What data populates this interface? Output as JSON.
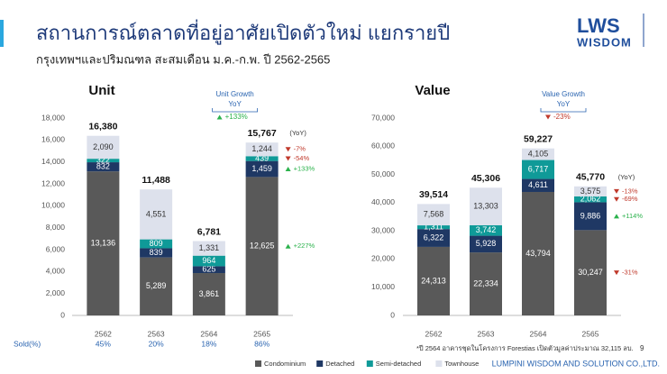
{
  "header": {
    "title": "สถานการณ์ตลาดที่อยู่อาศัยเปิดตัวใหม่ แยกรายปี",
    "subtitle": "กรุงเทพฯและปริมณฑล สะสมเดือน ม.ค.-ก.พ. ปี 2562-2565",
    "logo_top": "LWS",
    "logo_bottom": "WISDOM"
  },
  "chart_data": [
    {
      "type": "stacked_bar",
      "title": "Unit",
      "categories": [
        "2562",
        "2563",
        "2564",
        "2565"
      ],
      "series": [
        {
          "name": "Condominium",
          "color": "#595959",
          "values": [
            13136,
            5289,
            3861,
            12625
          ],
          "value_labels": [
            "13,136",
            "5,289",
            "3,861",
            "12,625"
          ]
        },
        {
          "name": "Detached",
          "color": "#1f3864",
          "values": [
            832,
            839,
            625,
            1459
          ],
          "value_labels": [
            "832",
            "839",
            "625",
            "1,459"
          ]
        },
        {
          "name": "Semi-detached",
          "color": "#0f9a98",
          "values": [
            322,
            809,
            964,
            439
          ],
          "value_labels": [
            "322",
            "809",
            "964",
            "439"
          ]
        },
        {
          "name": "Townhouse",
          "color": "#dde1ec",
          "values": [
            2090,
            4551,
            1331,
            1244
          ],
          "value_labels": [
            "2,090",
            "4,551",
            "1,331",
            "1,244"
          ]
        }
      ],
      "totals": [
        16380,
        11488,
        6781,
        15767
      ],
      "total_labels": [
        "16,380",
        "11,488",
        "6,781",
        "15,767"
      ],
      "ylim": [
        0,
        18000
      ],
      "yticks": [
        0,
        {
          "value": 2000,
          "label": "2,000"
        },
        {
          "value": 4000,
          "label": "4,000"
        },
        {
          "value": 6000,
          "label": "6,000"
        },
        {
          "value": 8000,
          "label": "8,000"
        },
        {
          "value": 10000,
          "label": "10,000"
        },
        {
          "value": 12000,
          "label": "12,000"
        },
        {
          "value": 14000,
          "label": "14,000"
        },
        {
          "value": 16000,
          "label": "16,000"
        },
        {
          "value": 18000,
          "label": "18,000"
        }
      ],
      "growth": {
        "title": "Unit Growth",
        "subtitle": "YoY",
        "total": "+133%",
        "label": "(YoY)",
        "segments": [
          "+227%",
          "+133%",
          "-54%",
          "-7%"
        ]
      },
      "sold": {
        "label": "Sold(%)",
        "values": [
          "45%",
          "20%",
          "18%",
          "86%"
        ]
      }
    },
    {
      "type": "stacked_bar",
      "title": "Value",
      "categories": [
        "2562",
        "2563",
        "2564",
        "2565"
      ],
      "series": [
        {
          "color": "#595959",
          "values": [
            24313,
            22334,
            43794,
            30247
          ],
          "value_labels": [
            "24,313",
            "22,334",
            "43,794",
            "30,247"
          ]
        },
        {
          "color": "#1f3864",
          "values": [
            6322,
            5928,
            4611,
            9886
          ],
          "value_labels": [
            "6,322",
            "5,928",
            "4,611",
            "9,886"
          ]
        },
        {
          "color": "#0f9a98",
          "values": [
            1311,
            3742,
            6717,
            2062
          ],
          "value_labels": [
            "1,311",
            "3,742",
            "6,717",
            "2,062"
          ]
        },
        {
          "color": "#dde1ec",
          "values": [
            7568,
            13303,
            4105,
            3575
          ],
          "value_labels": [
            "7,568",
            "13,303",
            "4,105",
            "3,575"
          ]
        }
      ],
      "totals": [
        39514,
        45306,
        59227,
        45770
      ],
      "total_labels": [
        "39,514",
        "45,306",
        "59,227",
        "45,770"
      ],
      "ylim": [
        0,
        70000
      ],
      "yticks": [
        0,
        {
          "value": 10000,
          "label": "10,000"
        },
        {
          "value": 20000,
          "label": "20,000"
        },
        {
          "value": 30000,
          "label": "30,000"
        },
        {
          "value": 40000,
          "label": "40,000"
        },
        {
          "value": 50000,
          "label": "50,000"
        },
        {
          "value": 60000,
          "label": "60,000"
        },
        {
          "value": 70000,
          "label": "70,000"
        }
      ],
      "growth": {
        "title": "Value Growth",
        "subtitle": "YoY",
        "total": "-23%",
        "label": "(YoY)",
        "segments": [
          "-31%",
          "+114%",
          "-69%",
          "-13%"
        ]
      }
    }
  ],
  "footer": {
    "note": "*ปี 2564 อาคารชุดในโครงการ Forestias เปิดตัวมูลค่าประมาณ 32,115 ลบ.",
    "page": "9",
    "company": "LUMPINI WISDOM AND SOLUTION CO.,LTD."
  }
}
